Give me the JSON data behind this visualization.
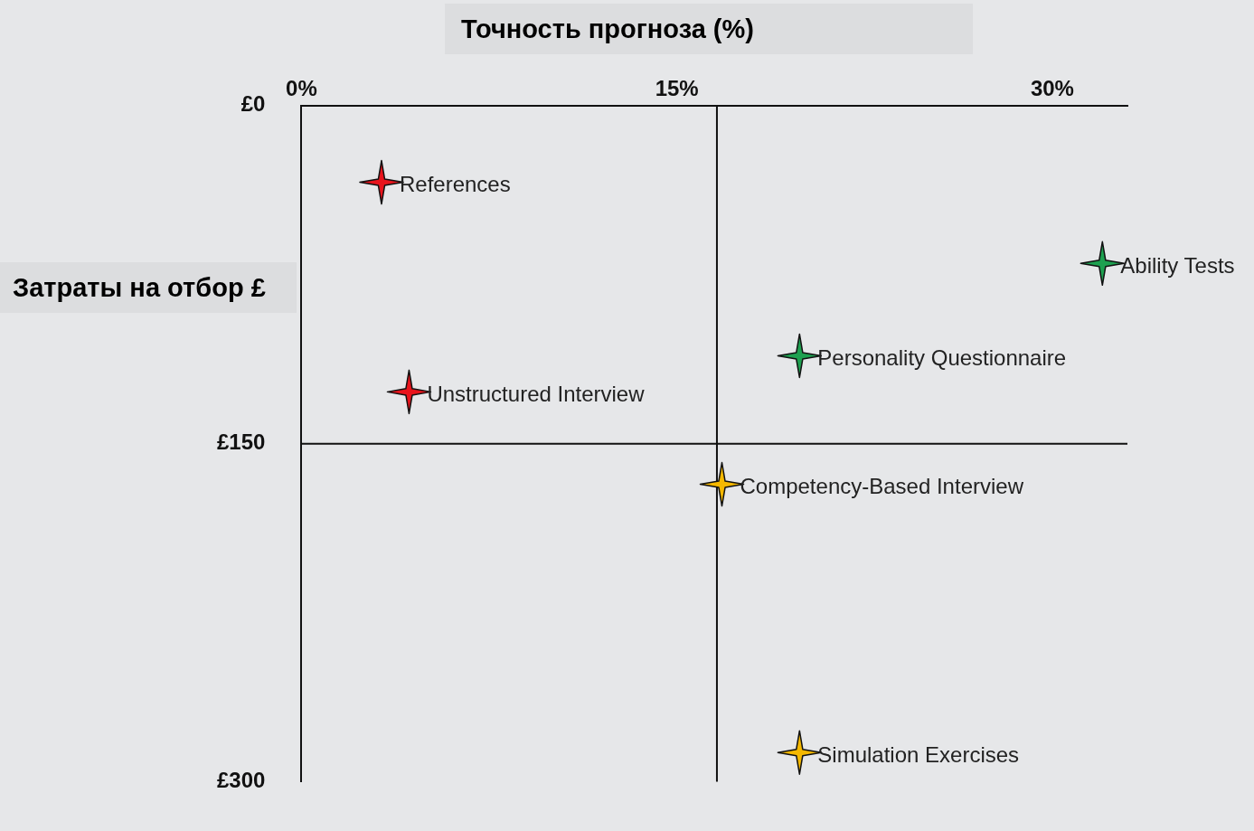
{
  "chart_data": {
    "type": "scatter",
    "xlabel": "Точность прогноза (%)",
    "ylabel": "Затраты на отбор £",
    "x": [
      3.2,
      32,
      19.9,
      4.3,
      16.8,
      19.9
    ],
    "values": [
      34,
      70,
      111,
      127,
      168,
      287
    ],
    "colors": [
      "#e8141c",
      "#1ea050",
      "#1ea050",
      "#e8141c",
      "#f5b800",
      "#f5b800"
    ],
    "marker": "star",
    "grid": false,
    "legend": false,
    "xlim": [
      0,
      33
    ],
    "xticks": [
      {
        "value": 0,
        "label": "0%"
      },
      {
        "value": 15,
        "label": "15%"
      },
      {
        "value": 30,
        "label": "30%"
      }
    ],
    "ylim": [
      300,
      0
    ],
    "yticks": [
      {
        "value": 0,
        "label": "£0"
      },
      {
        "value": 150,
        "label": "£150"
      },
      {
        "value": 300,
        "label": "£300"
      }
    ],
    "ref_lines": [
      {
        "axis": "x",
        "value": 16.6
      },
      {
        "axis": "y",
        "value": 150
      }
    ],
    "annotations": [
      {
        "text": "References",
        "x": 3.2,
        "y": 34
      },
      {
        "text": "Ability Tests",
        "x": 32,
        "y": 70
      },
      {
        "text": "Personality Questionnaire",
        "x": 19.9,
        "y": 111
      },
      {
        "text": "Unstructured Interview",
        "x": 4.3,
        "y": 127
      },
      {
        "text": "Competency-Based Interview",
        "x": 16.8,
        "y": 168
      },
      {
        "text": "Simulation Exercises",
        "x": 19.9,
        "y": 287
      }
    ]
  }
}
